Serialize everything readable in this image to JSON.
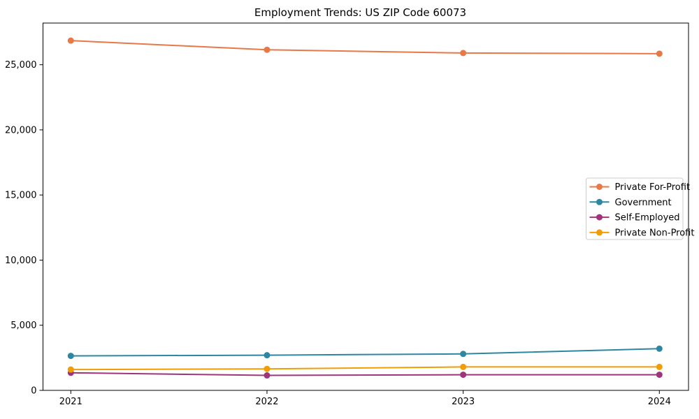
{
  "page": {
    "background_color": "#ffffff"
  },
  "chart_data": {
    "type": "line",
    "title": "Employment Trends: US ZIP Code 60073",
    "xlabel": "",
    "ylabel": "",
    "x": [
      2021,
      2022,
      2023,
      2024
    ],
    "series": [
      {
        "name": "Private For-Profit",
        "color": "#e87846",
        "values": [
          26850,
          26150,
          25900,
          25850
        ]
      },
      {
        "name": "Government",
        "color": "#2d87a0",
        "values": [
          2650,
          2700,
          2800,
          3200
        ]
      },
      {
        "name": "Self-Employed",
        "color": "#9e357b",
        "values": [
          1350,
          1150,
          1200,
          1200
        ]
      },
      {
        "name": "Private Non-Profit",
        "color": "#f09d06",
        "values": [
          1600,
          1650,
          1800,
          1800
        ]
      }
    ],
    "ylim": [
      0,
      28200
    ],
    "yticks": [
      0,
      5000,
      10000,
      15000,
      20000,
      25000
    ],
    "ytick_labels": [
      "0",
      "5,000",
      "10,000",
      "15,000",
      "20,000",
      "25,000"
    ],
    "xtick_labels": [
      "2021",
      "2022",
      "2023",
      "2024"
    ],
    "grid": false,
    "marker": "circle",
    "legend": {
      "position": "center-right",
      "border_color": "#cccccc",
      "background_color": "#ffffff"
    },
    "axis_color": "#000000"
  }
}
